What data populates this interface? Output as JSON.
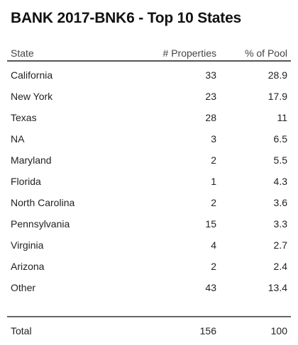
{
  "title": "BANK 2017-BNK6 - Top 10 States",
  "table": {
    "columns": [
      "State",
      "# Properties",
      "% of Pool"
    ],
    "rows": [
      {
        "state": "California",
        "properties": "33",
        "pool": "28.9"
      },
      {
        "state": "New York",
        "properties": "23",
        "pool": "17.9"
      },
      {
        "state": "Texas",
        "properties": "28",
        "pool": "11"
      },
      {
        "state": "NA",
        "properties": "3",
        "pool": "6.5"
      },
      {
        "state": "Maryland",
        "properties": "2",
        "pool": "5.5"
      },
      {
        "state": "Florida",
        "properties": "1",
        "pool": "4.3"
      },
      {
        "state": "North Carolina",
        "properties": "2",
        "pool": "3.6"
      },
      {
        "state": "Pennsylvania",
        "properties": "15",
        "pool": "3.3"
      },
      {
        "state": "Virginia",
        "properties": "4",
        "pool": "2.7"
      },
      {
        "state": "Arizona",
        "properties": "2",
        "pool": "2.4"
      },
      {
        "state": "Other",
        "properties": "43",
        "pool": "13.4"
      }
    ],
    "total": {
      "label": "Total",
      "properties": "156",
      "pool": "100"
    }
  }
}
